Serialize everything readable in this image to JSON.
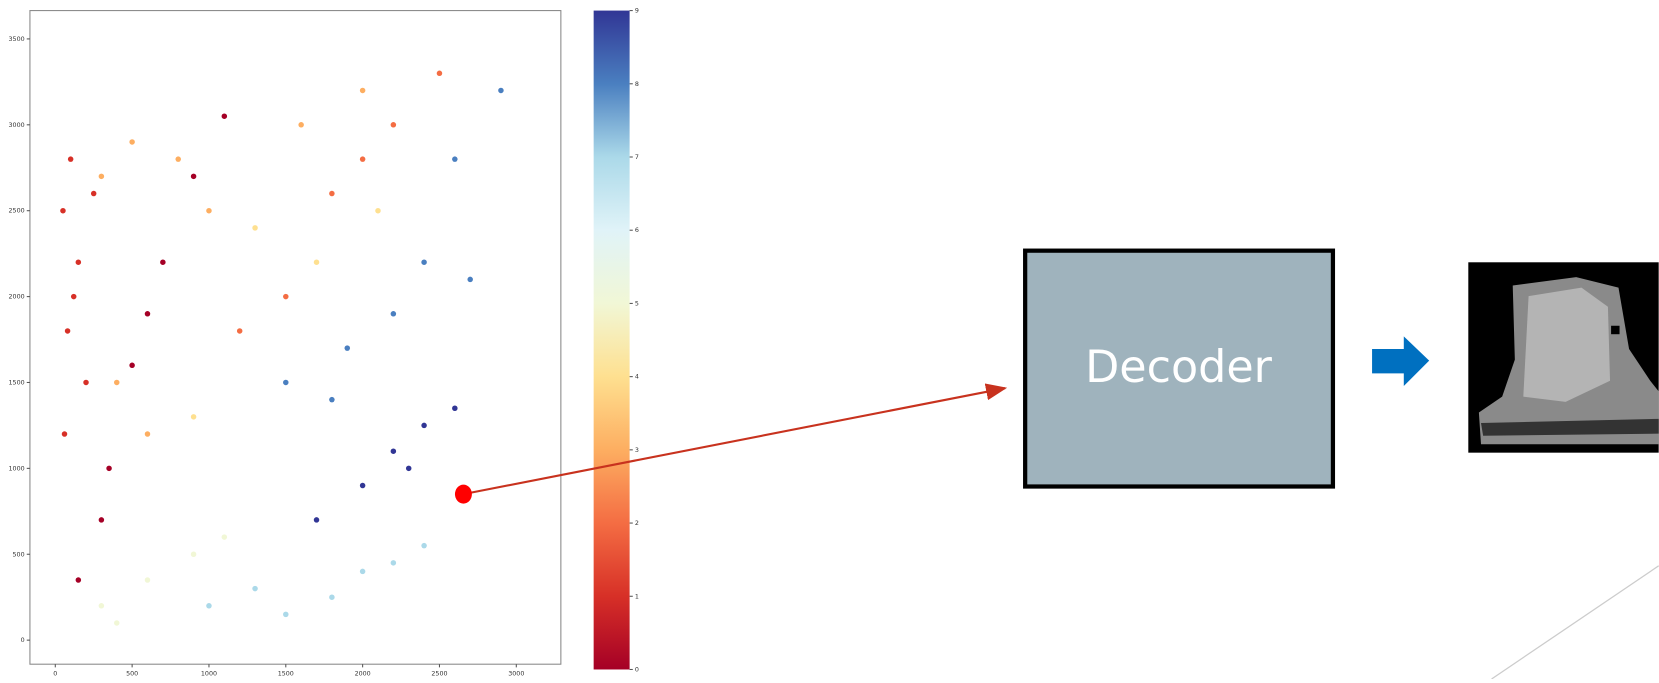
{
  "chart_data": {
    "type": "scatter",
    "x": [
      50,
      100,
      150,
      80,
      200,
      60,
      120,
      250,
      150,
      350,
      500,
      700,
      900,
      1100,
      600,
      300,
      300,
      500,
      400,
      800,
      1000,
      1600,
      2000,
      600,
      1500,
      1800,
      2200,
      2500,
      1200,
      2000,
      1300,
      1700,
      2100,
      900,
      1500,
      1800,
      2200,
      2600,
      2400,
      2900,
      1900,
      2700,
      2000,
      2200,
      2400,
      2600,
      1700,
      2300,
      1000,
      1500,
      2000,
      2400,
      1300,
      1800,
      2200,
      300,
      600,
      900,
      400,
      1100
    ],
    "values": [
      2500,
      2800,
      2200,
      1800,
      1500,
      1200,
      2000,
      2600,
      350,
      1000,
      1600,
      2200,
      2700,
      3050,
      1900,
      700,
      2700,
      2900,
      1500,
      2800,
      2500,
      3000,
      3200,
      1200,
      2000,
      2600,
      3000,
      3300,
      1800,
      2800,
      2400,
      2200,
      2500,
      1300,
      1500,
      1400,
      1900,
      2800,
      2200,
      3200,
      1700,
      2100,
      900,
      1100,
      1250,
      1350,
      700,
      1000,
      200,
      150,
      400,
      550,
      300,
      250,
      450,
      200,
      350,
      500,
      100,
      600
    ],
    "color_values": [
      1,
      1,
      1,
      1,
      1,
      1,
      1,
      1,
      0,
      0,
      0,
      0,
      0,
      0,
      0,
      0,
      3,
      3,
      3,
      3,
      3,
      3,
      3,
      3,
      2,
      2,
      2,
      2,
      2,
      2,
      4,
      4,
      4,
      4,
      8,
      8,
      8,
      8,
      8,
      8,
      8,
      8,
      9,
      9,
      9,
      9,
      9,
      9,
      7,
      7,
      7,
      7,
      7,
      7,
      7,
      5,
      5,
      5,
      5,
      5
    ],
    "colormap_colors": [
      "#a50026",
      "#d73027",
      "#f46d43",
      "#fdae61",
      "#fee090",
      "#f1f7d6",
      "#e0f3f8",
      "#abd9e9",
      "#4a7fc0",
      "#313695"
    ],
    "clim": [
      0,
      9
    ],
    "cticks": [
      0,
      1,
      2,
      3,
      4,
      5,
      6,
      7,
      8,
      9
    ],
    "xlim": [
      -165,
      3290
    ],
    "ylim": [
      -140,
      3665
    ],
    "xticks": [
      0,
      500,
      1000,
      1500,
      2000,
      2500,
      3000
    ],
    "yticks": [
      0,
      500,
      1000,
      1500,
      2000,
      2500,
      3000,
      3500
    ],
    "highlight": {
      "x": 2656,
      "y": 850,
      "color": "#ff0000"
    }
  },
  "decoder": {
    "label": "Decoder"
  }
}
